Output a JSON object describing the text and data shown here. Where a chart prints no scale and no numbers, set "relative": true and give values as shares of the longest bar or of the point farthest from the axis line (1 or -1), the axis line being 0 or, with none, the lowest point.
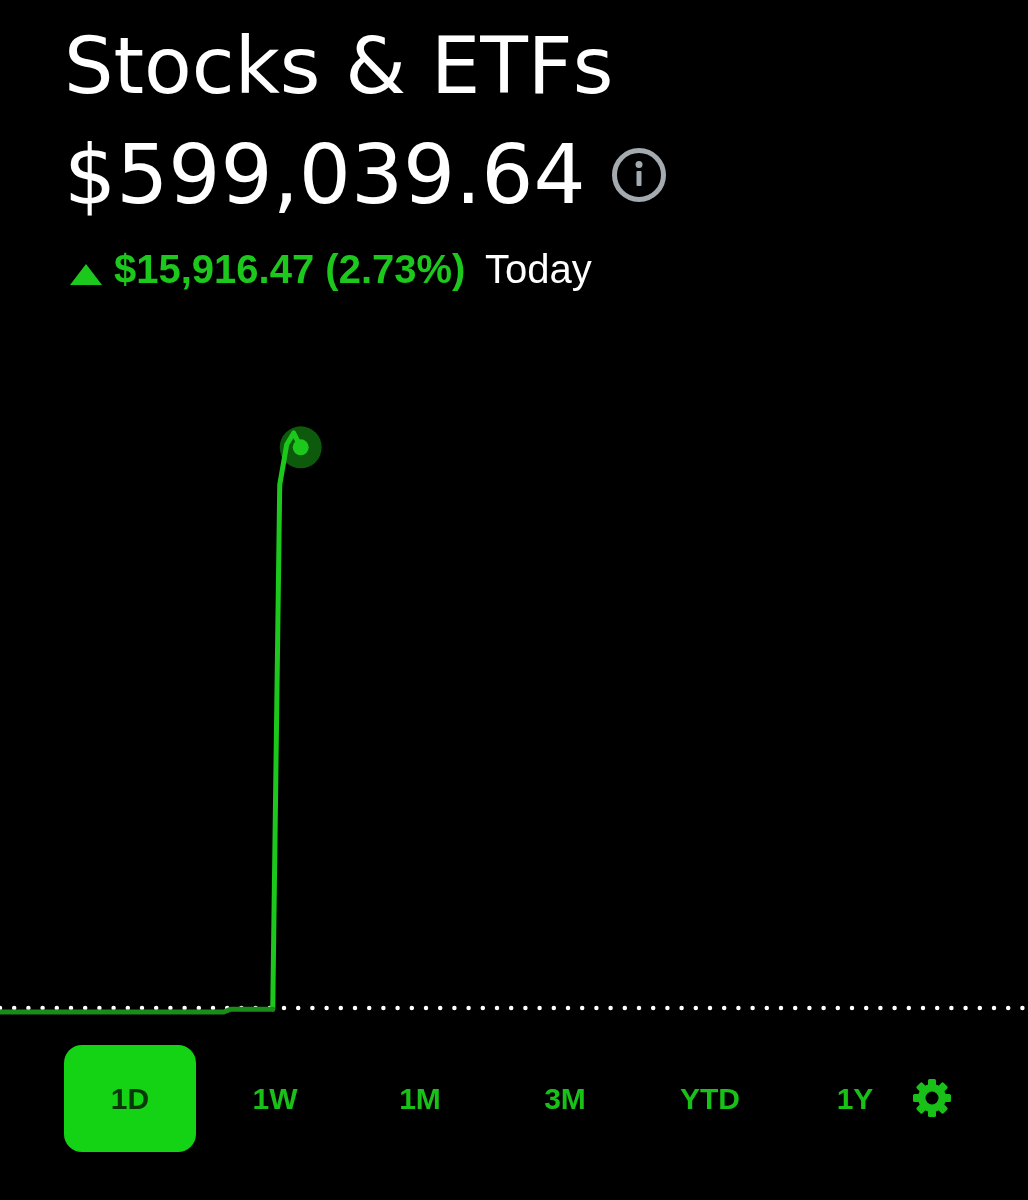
{
  "chart_data": {
    "type": "line",
    "title": "Stocks & ETFs",
    "subtitle": "$599,039.64",
    "annotations": [
      "$15,916.47 (2.73%)",
      "Today",
      "1D",
      "1W",
      "1M",
      "3M",
      "YTD",
      "1Y"
    ],
    "relative": true,
    "legend": false,
    "grid": false,
    "tick_labels": false,
    "categories": [
      null,
      null,
      null,
      null,
      null,
      null,
      null,
      null,
      null,
      null,
      null,
      null,
      null,
      null,
      null,
      null,
      null,
      null,
      null,
      null,
      null,
      null,
      null,
      null,
      null,
      null,
      null,
      null,
      null,
      null,
      null,
      null,
      null,
      null,
      null,
      null,
      null,
      null,
      null,
      null,
      null,
      null,
      null,
      null,
      null,
      null,
      null,
      null,
      null,
      null,
      null,
      null,
      null,
      null,
      null,
      null,
      null,
      null,
      null,
      null,
      null,
      null,
      null,
      null,
      null,
      null,
      null,
      null,
      null,
      null,
      null,
      null,
      null,
      null,
      null,
      null,
      null,
      null,
      null,
      null,
      null,
      null,
      null,
      null,
      null,
      null,
      null,
      null,
      null,
      null,
      null,
      null,
      null,
      null,
      null,
      null,
      null,
      null,
      null,
      null,
      null,
      null,
      null,
      null,
      null,
      null,
      null,
      null,
      null,
      null,
      null,
      null,
      null,
      null,
      null,
      null,
      null,
      null,
      null,
      null,
      null,
      null,
      null,
      null,
      null,
      null,
      null,
      null,
      null,
      null,
      null,
      null,
      null,
      null,
      null,
      null,
      null,
      null,
      null,
      null,
      null,
      null,
      null,
      null,
      null,
      null,
      null,
      null
    ],
    "series": [
      {
        "color": "#1a8c1a",
        "values": [
          -0.007,
          -0.007,
          -0.007,
          -0.007,
          -0.007,
          -0.007,
          -0.007,
          -0.007,
          -0.007,
          -0.007,
          -0.007,
          -0.007,
          -0.007,
          -0.007,
          -0.007,
          -0.007,
          -0.007,
          -0.007,
          -0.007,
          -0.007,
          -0.007,
          -0.007,
          -0.007,
          -0.007,
          -0.007,
          -0.007,
          -0.007,
          -0.007,
          -0.007,
          -0.007,
          -0.007,
          -0.007,
          -0.007,
          -0.002,
          -0.002,
          -0.002,
          -0.002,
          -0.002,
          -0.002,
          -0.002,
          null,
          null,
          null,
          null,
          null,
          null,
          null,
          null,
          null,
          null,
          null,
          null,
          null,
          null,
          null,
          null,
          null,
          null,
          null,
          null,
          null,
          null,
          null,
          null,
          null,
          null,
          null,
          null,
          null,
          null,
          null,
          null,
          null,
          null,
          null,
          null,
          null,
          null,
          null,
          null,
          null,
          null,
          null,
          null,
          null,
          null,
          null,
          null,
          null,
          null,
          null,
          null,
          null,
          null,
          null,
          null,
          null,
          null,
          null,
          null,
          null,
          null,
          null,
          null,
          null,
          null,
          null,
          null,
          null,
          null,
          null,
          null,
          null,
          null,
          null,
          null,
          null,
          null,
          null,
          null,
          null,
          null,
          null,
          null,
          null,
          null,
          null,
          null,
          null,
          null,
          null,
          null,
          null,
          null,
          null,
          null,
          null,
          null,
          null,
          null,
          null,
          null,
          null,
          null,
          null,
          null,
          null,
          null
        ]
      },
      {
        "color": "#1cc81c",
        "values": [
          null,
          null,
          null,
          null,
          null,
          null,
          null,
          null,
          null,
          null,
          null,
          null,
          null,
          null,
          null,
          null,
          null,
          null,
          null,
          null,
          null,
          null,
          null,
          null,
          null,
          null,
          null,
          null,
          null,
          null,
          null,
          null,
          null,
          null,
          null,
          null,
          null,
          null,
          null,
          -0.002,
          0.91,
          0.98,
          1,
          0.975,
          null,
          null,
          null,
          null,
          null,
          null,
          null,
          null,
          null,
          null,
          null,
          null,
          null,
          null,
          null,
          null,
          null,
          null,
          null,
          null,
          null,
          null,
          null,
          null,
          null,
          null,
          null,
          null,
          null,
          null,
          null,
          null,
          null,
          null,
          null,
          null,
          null,
          null,
          null,
          null,
          null,
          null,
          null,
          null,
          null,
          null,
          null,
          null,
          null,
          null,
          null,
          null,
          null,
          null,
          null,
          null,
          null,
          null,
          null,
          null,
          null,
          null,
          null,
          null,
          null,
          null,
          null,
          null,
          null,
          null,
          null,
          null,
          null,
          null,
          null,
          null,
          null,
          null,
          null,
          null,
          null,
          null,
          null,
          null,
          null,
          null,
          null,
          null,
          null,
          null,
          null,
          null,
          null,
          null,
          null,
          null,
          null,
          null,
          null,
          null,
          null,
          null,
          null,
          null
        ]
      }
    ],
    "ref_lines": [
      {
        "axis": "y",
        "value": 0,
        "color": "#ffffff",
        "line_style": "dotted"
      }
    ]
  }
}
